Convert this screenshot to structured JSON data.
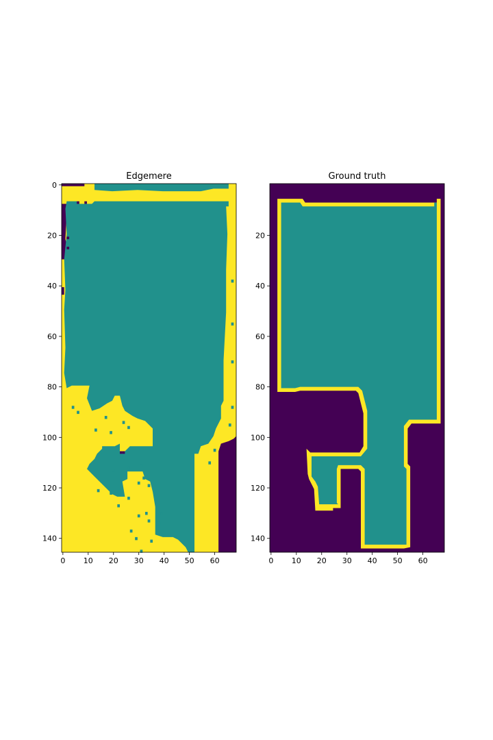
{
  "colors": {
    "background": "#440154",
    "region": "#21918c",
    "edge": "#fde725"
  },
  "chart_data": [
    {
      "type": "heatmap",
      "title": "Edgemere",
      "xlim": [
        0,
        69
      ],
      "ylim": [
        146,
        0
      ],
      "xticks": [
        0,
        10,
        20,
        30,
        40,
        50,
        60
      ],
      "yticks": [
        0,
        20,
        40,
        60,
        80,
        100,
        120,
        140
      ],
      "legend": "none",
      "grid": false
    },
    {
      "type": "heatmap",
      "title": "Ground truth",
      "xlim": [
        0,
        69
      ],
      "ylim": [
        146,
        0
      ],
      "xticks": [
        0,
        10,
        20,
        30,
        40,
        50,
        60
      ],
      "yticks": [
        20,
        40,
        60,
        80,
        100,
        120,
        140
      ],
      "legend": "none",
      "grid": false
    }
  ]
}
